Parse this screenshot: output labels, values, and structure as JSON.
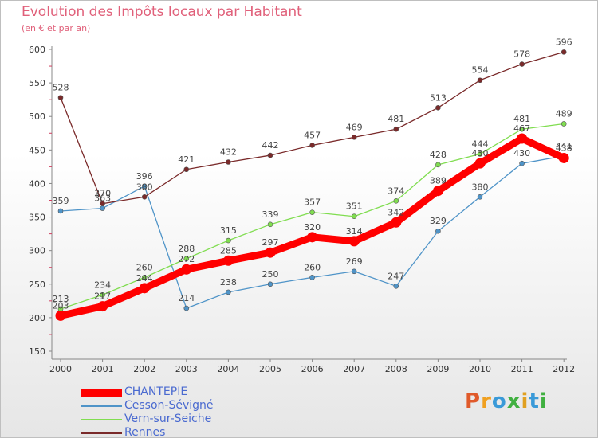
{
  "title": "Evolution des Impôts locaux par Habitant",
  "subtitle": "(en € et par an)",
  "brand": {
    "text": "Proxiti",
    "colors": [
      "#e05a2a",
      "#f0a020",
      "#3a9ad8",
      "#40b040",
      "#e0a020",
      "#3a9ad8",
      "#40b040"
    ]
  },
  "chart_data": {
    "type": "line",
    "x": [
      "2000",
      "2001",
      "2002",
      "2003",
      "2004",
      "2005",
      "2006",
      "2007",
      "2008",
      "2009",
      "2010",
      "2011",
      "2012"
    ],
    "ylim": [
      150,
      600
    ],
    "yticks": [
      150,
      200,
      250,
      300,
      350,
      400,
      450,
      500,
      550,
      600
    ],
    "grid": false,
    "legend_position": "bottom-left",
    "series": [
      {
        "name": "CHANTEPIE",
        "color": "#ff0000",
        "emphasis": true,
        "values": [
          203,
          217,
          244,
          272,
          285,
          297,
          320,
          314,
          342,
          389,
          430,
          467,
          438
        ]
      },
      {
        "name": "Cesson-Sévigné",
        "color": "#4f94c8",
        "values": [
          359,
          363,
          396,
          214,
          238,
          250,
          260,
          269,
          247,
          329,
          380,
          430,
          441
        ]
      },
      {
        "name": "Vern-sur-Seiche",
        "color": "#80dd50",
        "values": [
          213,
          234,
          260,
          288,
          315,
          339,
          357,
          351,
          374,
          428,
          444,
          481,
          489
        ]
      },
      {
        "name": "Rennes",
        "color": "#7a2a2a",
        "values": [
          528,
          370,
          380,
          421,
          432,
          442,
          457,
          469,
          481,
          513,
          554,
          578,
          596
        ]
      }
    ]
  }
}
